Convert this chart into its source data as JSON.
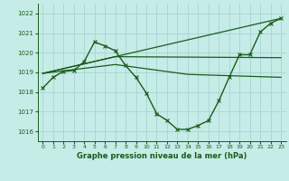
{
  "title": "Graphe pression niveau de la mer (hPa)",
  "bg_color": "#c6ece8",
  "grid_color": "#aad8d4",
  "line_color": "#1a5c1a",
  "xlim": [
    -0.5,
    23.5
  ],
  "ylim": [
    1015.5,
    1022.5
  ],
  "yticks": [
    1016,
    1017,
    1018,
    1019,
    1020,
    1021,
    1022
  ],
  "xticks": [
    0,
    1,
    2,
    3,
    4,
    5,
    6,
    7,
    8,
    9,
    10,
    11,
    12,
    13,
    14,
    15,
    16,
    17,
    18,
    19,
    20,
    21,
    22,
    23
  ],
  "series": [
    {
      "x": [
        0,
        1,
        2,
        3,
        4,
        5,
        6,
        7,
        8,
        9,
        10,
        11,
        12,
        13,
        14,
        15,
        16,
        17,
        18,
        19,
        20,
        21,
        22,
        23
      ],
      "y": [
        1018.2,
        1018.75,
        1019.05,
        1019.1,
        1019.55,
        1020.55,
        1020.35,
        1020.1,
        1019.35,
        1018.75,
        1017.95,
        1016.9,
        1016.55,
        1016.1,
        1016.1,
        1016.3,
        1016.55,
        1017.55,
        1018.75,
        1019.9,
        1019.9,
        1021.05,
        1021.5,
        1021.75
      ],
      "marker": "x",
      "markersize": 3.5,
      "linewidth": 1.0,
      "linestyle": "-"
    },
    {
      "x": [
        0,
        23
      ],
      "y": [
        1018.95,
        1021.75
      ],
      "marker": null,
      "linewidth": 0.9,
      "linestyle": "-"
    },
    {
      "x": [
        0,
        7,
        23
      ],
      "y": [
        1018.95,
        1019.8,
        1019.75
      ],
      "marker": null,
      "linewidth": 0.9,
      "linestyle": "-"
    },
    {
      "x": [
        0,
        7,
        14,
        23
      ],
      "y": [
        1018.95,
        1019.4,
        1018.9,
        1018.75
      ],
      "marker": null,
      "linewidth": 0.9,
      "linestyle": "-"
    }
  ]
}
